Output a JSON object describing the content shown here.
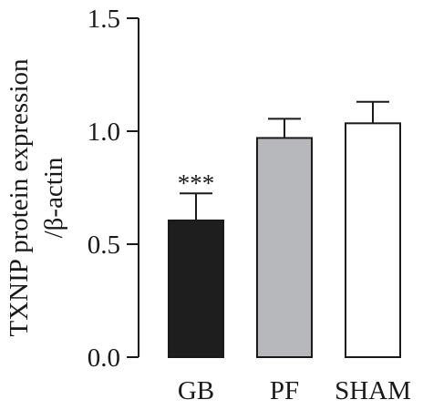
{
  "chart_data": {
    "type": "bar",
    "title": "",
    "categories": [
      "GB",
      "PF",
      "SHAM"
    ],
    "values": [
      0.605,
      0.97,
      1.035
    ],
    "errors": [
      0.12,
      0.085,
      0.095
    ],
    "significance": [
      "***",
      "",
      ""
    ],
    "ylabel_line1": "TXNIP protein expression",
    "ylabel_line2": "/β-actin",
    "xlabel": "",
    "ylim": [
      0,
      1.5
    ],
    "yticks": [
      "0.0",
      "0.5",
      "1.0",
      "1.5"
    ],
    "grid": false,
    "colors": {
      "GB": "#1e1e1e",
      "PF": "#b7b8bc",
      "SHAM": "#ffffff",
      "outline": "#1a1a1a"
    }
  }
}
